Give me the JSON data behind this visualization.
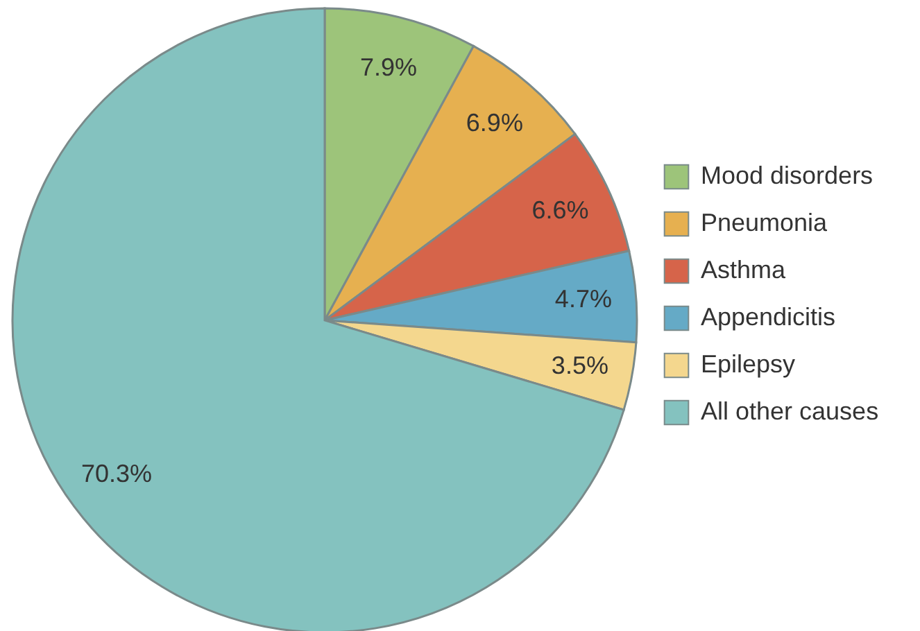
{
  "chart_data": {
    "type": "pie",
    "categories": [
      "Mood disorders",
      "Pneumonia",
      "Asthma",
      "Appendicitis",
      "Epilepsy",
      "All other causes"
    ],
    "values": [
      7.9,
      6.9,
      6.6,
      4.7,
      3.5,
      70.3
    ],
    "colors": [
      "#9dc47a",
      "#e6b050",
      "#d6644a",
      "#65aac6",
      "#f4d78e",
      "#84c2bf"
    ],
    "value_labels": [
      "7.9%",
      "6.9%",
      "6.6%",
      "4.7%",
      "3.5%",
      "70.3%"
    ],
    "legend": "right"
  }
}
